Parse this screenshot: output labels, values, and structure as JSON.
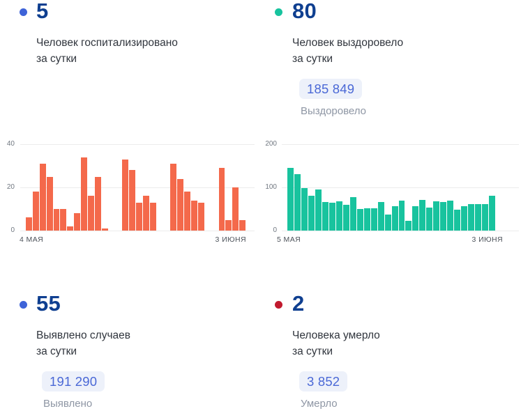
{
  "stats": {
    "hospitalized": {
      "value": "5",
      "title": "Человек госпитализировано\nза сутки",
      "bullet_color": "#3e63d8"
    },
    "recovered": {
      "value": "80",
      "title": "Человек выздоровело\nза сутки",
      "bullet_color": "#17c39e",
      "total": "185 849",
      "total_label": "Выздоровело"
    },
    "detected": {
      "value": "55",
      "title": "Выявлено случаев\nза сутки",
      "bullet_color": "#3e63d8",
      "total": "191 290",
      "total_label": "Выявлено"
    },
    "deaths": {
      "value": "2",
      "title": "Человека умерло\nза сутки",
      "bullet_color": "#c11a2e",
      "total": "3 852",
      "total_label": "Умерло"
    }
  },
  "chart_data": [
    {
      "type": "bar",
      "name": "hospitalized-per-day",
      "color": "#f4694b",
      "x_first_label": "4 МАЯ",
      "x_last_label": "3 ИЮНЯ",
      "ylim": [
        0,
        40
      ],
      "yticks": [
        0,
        20,
        40
      ],
      "grid": true,
      "values": [
        6,
        18,
        31,
        25,
        10,
        10,
        2,
        8,
        34,
        16,
        25,
        1,
        0,
        0,
        33,
        28,
        13,
        16,
        13,
        0,
        0,
        31,
        24,
        18,
        14,
        13,
        0,
        0,
        29,
        5,
        20,
        5
      ]
    },
    {
      "type": "bar",
      "name": "recovered-per-day",
      "color": "#18c39e",
      "x_first_label": "5 МАЯ",
      "x_last_label": "3 ИЮНЯ",
      "ylim": [
        0,
        200
      ],
      "yticks": [
        0,
        100,
        200
      ],
      "grid": true,
      "values": [
        145,
        130,
        98,
        80,
        96,
        66,
        65,
        68,
        60,
        78,
        50,
        51,
        51,
        67,
        37,
        56,
        69,
        22,
        56,
        71,
        53,
        68,
        66,
        70,
        49,
        56,
        62,
        62,
        61,
        80
      ]
    }
  ],
  "colors": {
    "number_navy": "#0f3f90",
    "badge_bg": "#edf1fa",
    "badge_text": "#4a68d6",
    "bar_orange": "#f4694b",
    "bar_teal": "#18c39e",
    "accent_blue": "#3e63d8",
    "accent_red": "#c11a2e"
  }
}
